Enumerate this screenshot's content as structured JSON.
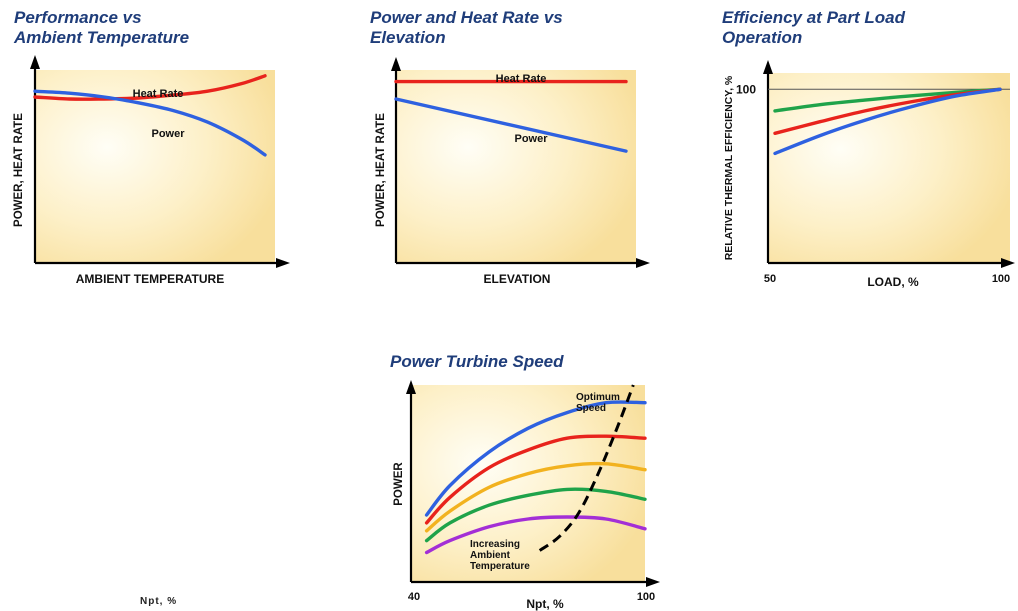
{
  "stray_text": "Npt, %",
  "chart_data": [
    {
      "type": "line",
      "title": "Performance vs",
      "subtitle": "Ambient Temperature",
      "xlabel": "AMBIENT TEMPERATURE",
      "ylabel": "POWER, HEAT RATE",
      "xlim": [
        0,
        100
      ],
      "ylim": [
        0,
        100
      ],
      "grid": false,
      "series": [
        {
          "name": "Heat Rate",
          "color": "#e8231c",
          "x": [
            0,
            15,
            30,
            45,
            60,
            75,
            90,
            100
          ],
          "y": [
            86,
            85,
            85,
            85.5,
            87,
            89,
            93,
            97
          ]
        },
        {
          "name": "Power",
          "color": "#2e61e0",
          "x": [
            0,
            15,
            30,
            45,
            60,
            75,
            90,
            100
          ],
          "y": [
            89,
            88,
            86,
            83,
            79,
            73,
            64,
            56
          ]
        }
      ]
    },
    {
      "type": "line",
      "title": "Power and Heat Rate vs",
      "subtitle": "Elevation",
      "xlabel": "ELEVATION",
      "ylabel": "POWER, HEAT RATE",
      "xlim": [
        0,
        100
      ],
      "ylim": [
        0,
        100
      ],
      "grid": false,
      "series": [
        {
          "name": "Heat Rate",
          "color": "#e8231c",
          "x": [
            0,
            100
          ],
          "y": [
            94,
            94
          ]
        },
        {
          "name": "Power",
          "color": "#2e61e0",
          "x": [
            0,
            100
          ],
          "y": [
            85,
            58
          ]
        }
      ]
    },
    {
      "type": "line",
      "title": "Efficiency at Part Load",
      "subtitle": "Operation",
      "xlabel": "LOAD, %",
      "ylabel": "RELATIVE THERMAL EFFICIENCY, %",
      "x_ticks": [
        "50",
        "100"
      ],
      "y_ticks": [
        "100"
      ],
      "xlim": [
        50,
        100
      ],
      "ylim": [
        55,
        105
      ],
      "grid": false,
      "series": [
        {
          "color": "#1fa34a",
          "x": [
            50,
            60,
            70,
            80,
            90,
            100
          ],
          "y": [
            94.4,
            96,
            97.2,
            98.3,
            99.2,
            100
          ]
        },
        {
          "color": "#e8231c",
          "x": [
            50,
            60,
            70,
            80,
            90,
            100
          ],
          "y": [
            88.6,
            91.6,
            94.4,
            96.7,
            98.6,
            100
          ]
        },
        {
          "color": "#2e61e0",
          "x": [
            50,
            60,
            70,
            80,
            90,
            100
          ],
          "y": [
            83.4,
            88,
            92,
            95.4,
            98.2,
            100
          ]
        }
      ]
    },
    {
      "type": "line",
      "title": "Power Turbine Speed",
      "subtitle": "",
      "xlabel": "Npt, %",
      "ylabel": "POWER",
      "x_ticks": [
        "40",
        "100"
      ],
      "xlim": [
        40,
        100
      ],
      "ylim": [
        0,
        100
      ],
      "grid": false,
      "annotations": [
        {
          "text": "Optimum Speed",
          "lines": [
            "Optimum",
            "Speed"
          ]
        },
        {
          "text": "Increasing Ambient Temperature",
          "lines": [
            "Increasing",
            "Ambient",
            "Temperature"
          ]
        }
      ],
      "series": [
        {
          "color": "#2e61e0",
          "x": [
            44,
            50,
            60,
            70,
            80,
            90,
            100
          ],
          "y": [
            34,
            49,
            66,
            78,
            86,
            91,
            91
          ]
        },
        {
          "color": "#e8231c",
          "x": [
            44,
            50,
            60,
            70,
            80,
            90,
            100
          ],
          "y": [
            30,
            43,
            58,
            67,
            73,
            74,
            73
          ]
        },
        {
          "color": "#f2b21f",
          "x": [
            44,
            50,
            60,
            70,
            80,
            90,
            100
          ],
          "y": [
            26,
            36,
            48,
            55,
            59,
            60,
            57
          ]
        },
        {
          "color": "#1fa34a",
          "x": [
            44,
            50,
            60,
            70,
            80,
            90,
            100
          ],
          "y": [
            21,
            30,
            39,
            44,
            47,
            46,
            42
          ]
        },
        {
          "color": "#a32fd6",
          "x": [
            44,
            50,
            60,
            70,
            80,
            90,
            100
          ],
          "y": [
            15,
            21,
            28,
            32,
            33,
            32,
            27
          ]
        },
        {
          "name": "Optimum Speed",
          "color": "#000000",
          "dashed": true,
          "x": [
            73,
            78,
            83,
            88,
            93,
            97
          ],
          "y": [
            16,
            23,
            35,
            55,
            79,
            100
          ]
        }
      ]
    }
  ]
}
